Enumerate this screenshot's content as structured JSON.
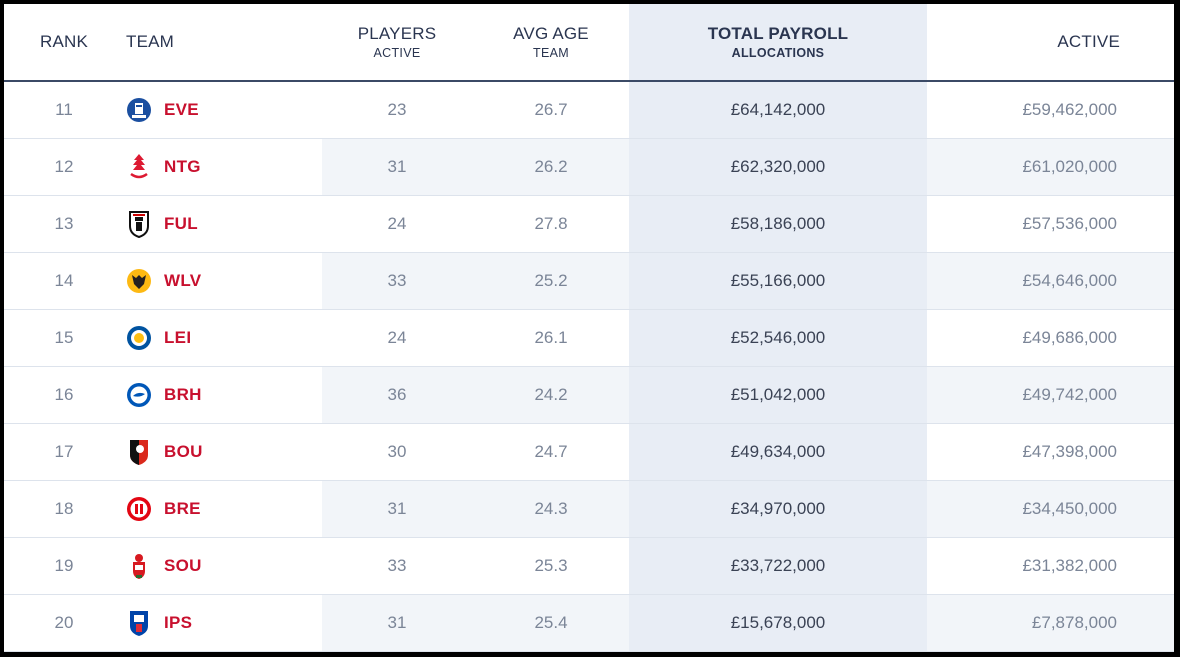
{
  "columns": {
    "rank": "RANK",
    "team": "TEAM",
    "players_main": "PLAYERS",
    "players_sub": "ACTIVE",
    "age_main": "AVG AGE",
    "age_sub": "TEAM",
    "payroll_main": "TOTAL PAYROLL",
    "payroll_sub": "ALLOCATIONS",
    "active": "ACTIVE"
  },
  "colors": {
    "team_abbr": "#c8102e",
    "header_text": "#2a3550",
    "highlight_column": "#e8edf5"
  },
  "rows": [
    {
      "rank": "11",
      "team": "EVE",
      "players": "23",
      "avg_age": "26.7",
      "payroll": "£64,142,000",
      "active": "£59,462,000",
      "icon": "everton-crest-icon"
    },
    {
      "rank": "12",
      "team": "NTG",
      "players": "31",
      "avg_age": "26.2",
      "payroll": "£62,320,000",
      "active": "£61,020,000",
      "icon": "nottingham-forest-crest-icon"
    },
    {
      "rank": "13",
      "team": "FUL",
      "players": "24",
      "avg_age": "27.8",
      "payroll": "£58,186,000",
      "active": "£57,536,000",
      "icon": "fulham-crest-icon"
    },
    {
      "rank": "14",
      "team": "WLV",
      "players": "33",
      "avg_age": "25.2",
      "payroll": "£55,166,000",
      "active": "£54,646,000",
      "icon": "wolves-crest-icon"
    },
    {
      "rank": "15",
      "team": "LEI",
      "players": "24",
      "avg_age": "26.1",
      "payroll": "£52,546,000",
      "active": "£49,686,000",
      "icon": "leicester-crest-icon"
    },
    {
      "rank": "16",
      "team": "BRH",
      "players": "36",
      "avg_age": "24.2",
      "payroll": "£51,042,000",
      "active": "£49,742,000",
      "icon": "brighton-crest-icon"
    },
    {
      "rank": "17",
      "team": "BOU",
      "players": "30",
      "avg_age": "24.7",
      "payroll": "£49,634,000",
      "active": "£47,398,000",
      "icon": "bournemouth-crest-icon"
    },
    {
      "rank": "18",
      "team": "BRE",
      "players": "31",
      "avg_age": "24.3",
      "payroll": "£34,970,000",
      "active": "£34,450,000",
      "icon": "brentford-crest-icon"
    },
    {
      "rank": "19",
      "team": "SOU",
      "players": "33",
      "avg_age": "25.3",
      "payroll": "£33,722,000",
      "active": "£31,382,000",
      "icon": "southampton-crest-icon"
    },
    {
      "rank": "20",
      "team": "IPS",
      "players": "31",
      "avg_age": "25.4",
      "payroll": "£15,678,000",
      "active": "£7,878,000",
      "icon": "ipswich-crest-icon"
    }
  ]
}
